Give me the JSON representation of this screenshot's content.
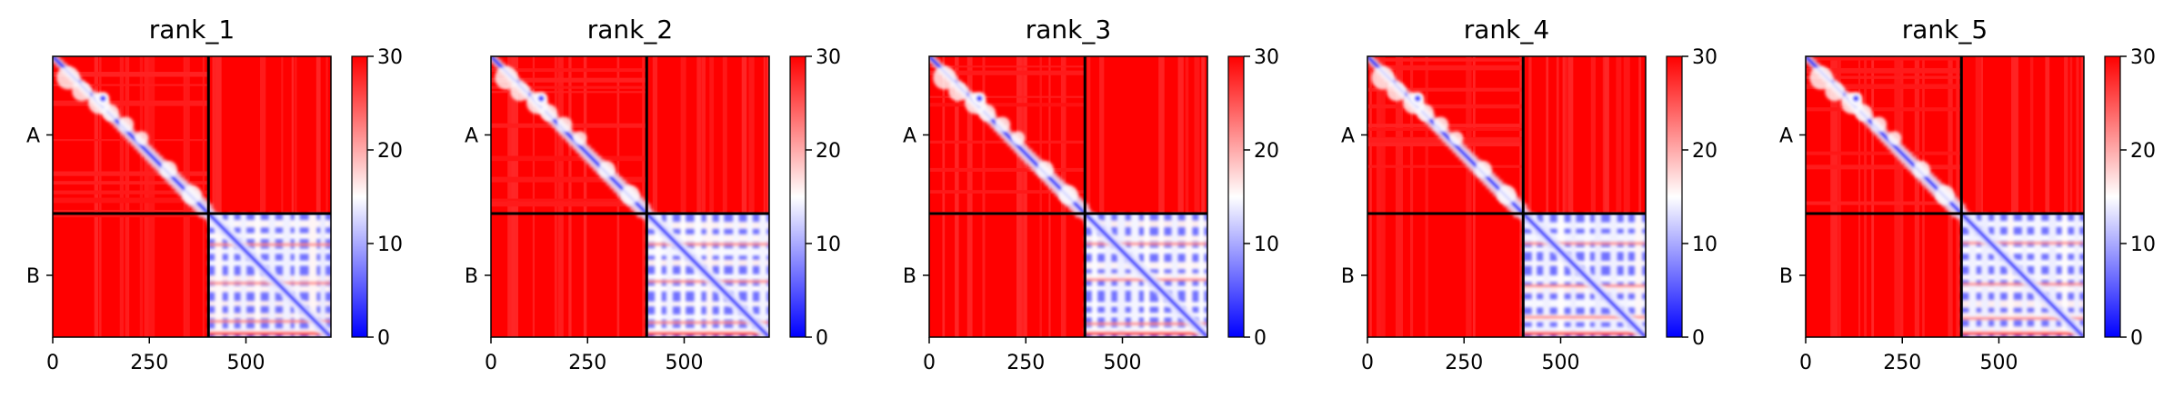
{
  "chart_data": {
    "type": "heatmap",
    "description_kind": "predicted aligned error matrices",
    "colormap": {
      "low": "#0000ff",
      "mid": "#ffffff",
      "high": "#ff0000",
      "vmin": 0,
      "vmax": 30
    },
    "colorbar_ticks": [
      "0",
      "10",
      "20",
      "30"
    ],
    "x_ticks": [
      {
        "value": 0,
        "label": "0"
      },
      {
        "value": 250,
        "label": "250"
      },
      {
        "value": 500,
        "label": "500"
      }
    ],
    "xlim": [
      0,
      720
    ],
    "ylim": [
      720,
      0
    ],
    "chain_boundary": 403,
    "chains": [
      {
        "label": "A",
        "start": 0,
        "end": 403
      },
      {
        "label": "B",
        "start": 403,
        "end": 720
      }
    ],
    "panels": [
      {
        "title": "rank_1"
      },
      {
        "title": "rank_2"
      },
      {
        "title": "rank_3"
      },
      {
        "title": "rank_4"
      },
      {
        "title": "rank_5"
      }
    ]
  }
}
